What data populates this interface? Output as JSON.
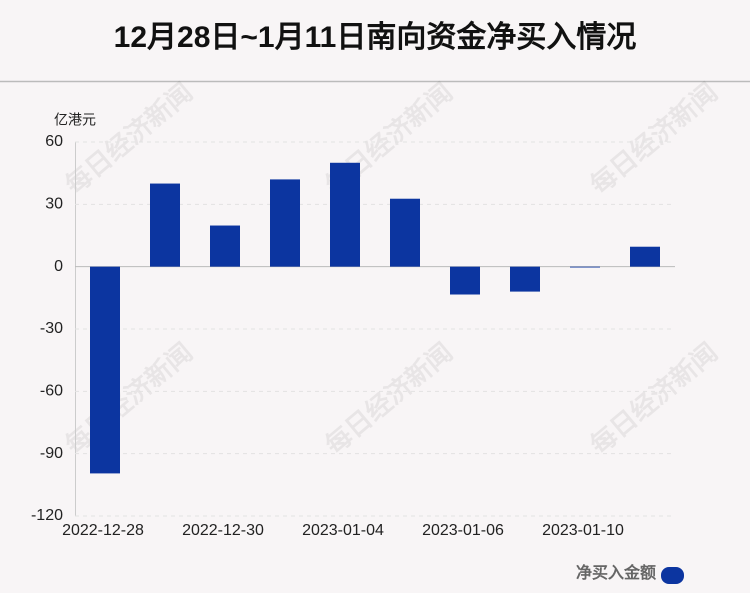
{
  "chart_data": {
    "type": "bar",
    "title": "12月28日~1月11日南向资金净买入情况",
    "y_axis_label": "亿港元",
    "watermark": "每日经济新闻",
    "categories": [
      "2022-12-28",
      null,
      "2022-12-30",
      null,
      "2023-01-04",
      null,
      "2023-01-06",
      null,
      "2023-01-10",
      null
    ],
    "series": [
      {
        "name": "净买入金额",
        "color": "#0c35a0",
        "values": [
          -99.5,
          40,
          19.8,
          42,
          50,
          32.7,
          -13.4,
          -12,
          -0.4,
          9.6
        ]
      }
    ],
    "ylim": [
      -120,
      60
    ],
    "yticks": [
      -120,
      -90,
      -60,
      -30,
      0,
      30,
      60
    ],
    "grid": true,
    "legend": "bottom-right"
  }
}
